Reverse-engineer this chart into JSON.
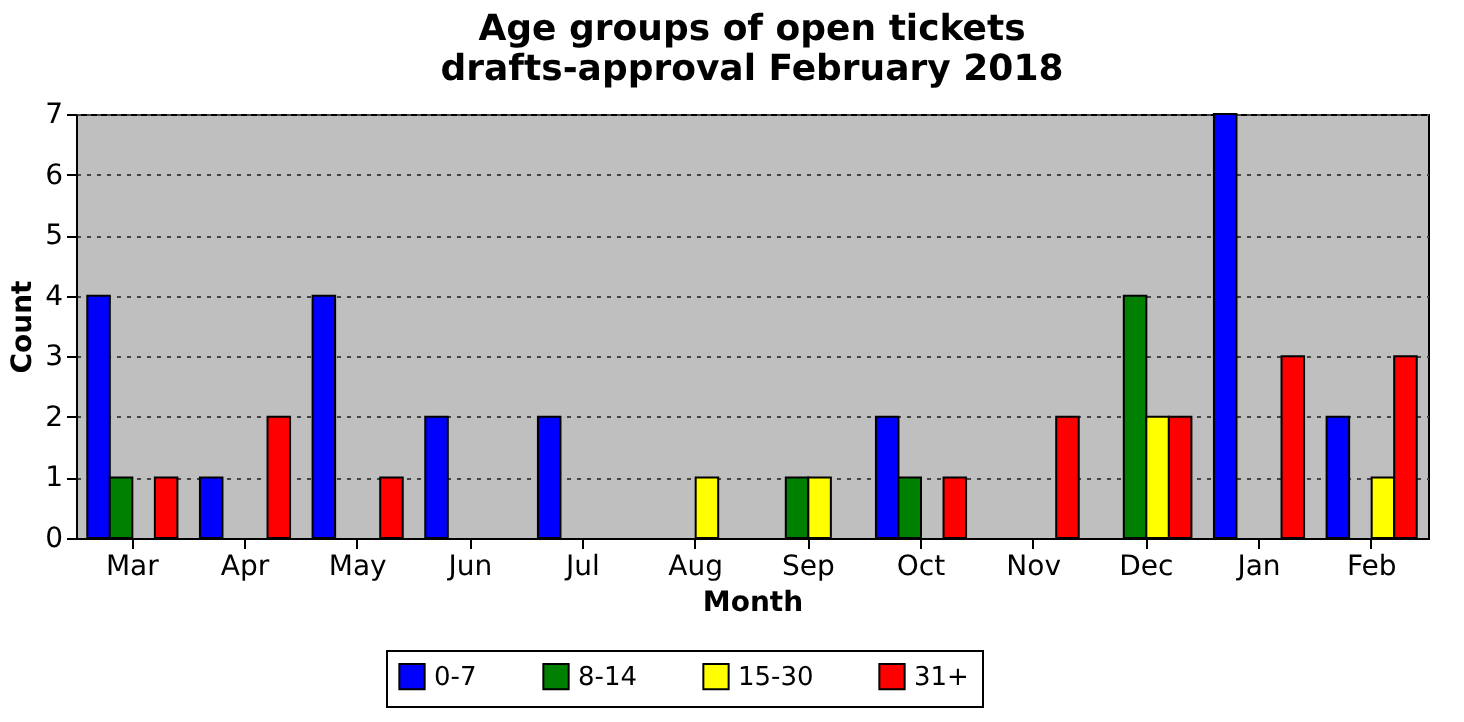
{
  "chart_data": {
    "type": "bar",
    "title": "Age groups of open tickets",
    "subtitle": "drafts-approval February 2018",
    "xlabel": "Month",
    "ylabel": "Count",
    "categories": [
      "Mar",
      "Apr",
      "May",
      "Jun",
      "Jul",
      "Aug",
      "Sep",
      "Oct",
      "Nov",
      "Dec",
      "Jan",
      "Feb"
    ],
    "series": [
      {
        "name": "0-7",
        "color": "#0000ff",
        "values": [
          4,
          1,
          4,
          2,
          2,
          0,
          0,
          2,
          0,
          0,
          7,
          2
        ]
      },
      {
        "name": "8-14",
        "color": "#008000",
        "values": [
          1,
          0,
          0,
          0,
          0,
          0,
          1,
          1,
          0,
          4,
          0,
          0
        ]
      },
      {
        "name": "15-30",
        "color": "#ffff00",
        "values": [
          0,
          0,
          0,
          0,
          0,
          1,
          1,
          0,
          0,
          2,
          0,
          1
        ]
      },
      {
        "name": "31+",
        "color": "#ff0000",
        "values": [
          1,
          2,
          1,
          0,
          0,
          0,
          0,
          1,
          2,
          2,
          3,
          3
        ]
      }
    ],
    "ylim": [
      0,
      7
    ],
    "yticks": [
      0,
      1,
      2,
      3,
      4,
      5,
      6,
      7
    ],
    "grid": "y",
    "legend": "bottom"
  }
}
